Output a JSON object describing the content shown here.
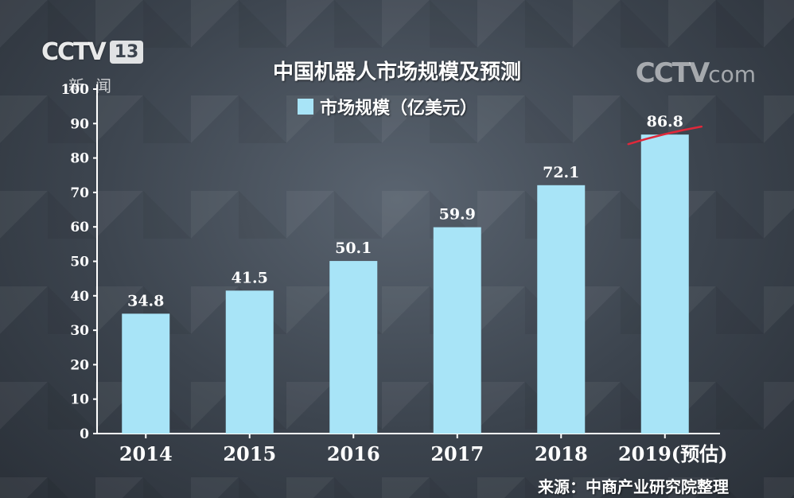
{
  "logos": {
    "channel": "CCTV",
    "channel_number": "13",
    "channel_name": "新闻",
    "watermark": "CCTV",
    "watermark_suffix": "com"
  },
  "source_note": "来源：中商产业研究院整理",
  "colors": {
    "bar": "#a8e4f7",
    "axis": "#ffffff",
    "annotation_line": "#e0283a"
  },
  "chart_data": {
    "type": "bar",
    "title": "中国机器人市场规模及预测",
    "legend_position": "top-center",
    "categories": [
      "2014",
      "2015",
      "2016",
      "2017",
      "2018",
      "2019(预估)"
    ],
    "series": [
      {
        "name": "市场规模（亿美元）",
        "values": [
          34.8,
          41.5,
          50.1,
          59.9,
          72.1,
          86.8
        ]
      }
    ],
    "data_labels": [
      "34.8",
      "41.5",
      "50.1",
      "59.9",
      "72.1",
      "86.8"
    ],
    "y_ticks": [
      "0",
      "10",
      "20",
      "30",
      "40",
      "50",
      "60",
      "70",
      "80",
      "90",
      "100"
    ],
    "ylim": [
      0,
      100
    ],
    "grid": false,
    "annotation": "red underline drawn on the 2019 bar top"
  }
}
